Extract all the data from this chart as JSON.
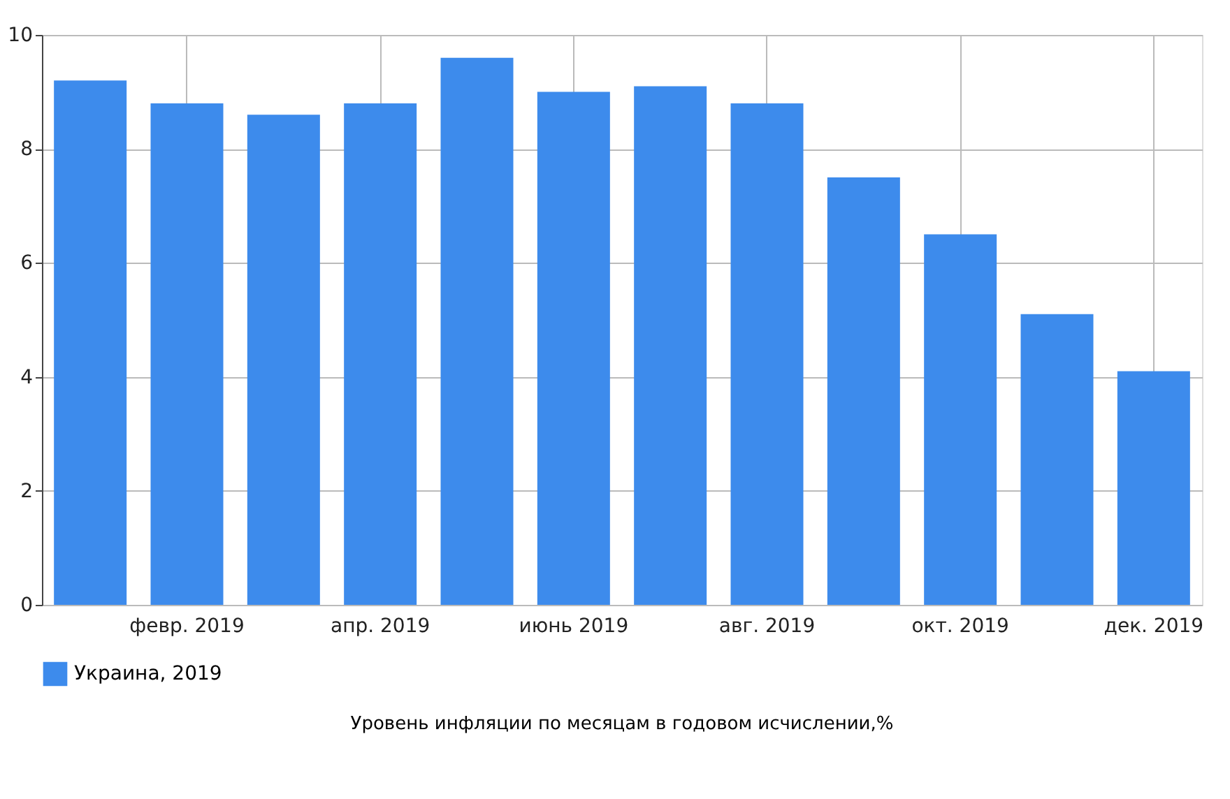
{
  "chart_data": {
    "type": "bar",
    "title": "Уровень инфляции по месяцам в годовом исчислении,%",
    "categories": [
      null,
      "февр. 2019",
      null,
      "апр. 2019",
      null,
      "июнь 2019",
      null,
      "авг. 2019",
      null,
      "окт. 2019",
      null,
      "дек. 2019"
    ],
    "series": [
      {
        "name": "Украина, 2019",
        "color": "#3d8bec",
        "values": [
          9.2,
          8.8,
          8.6,
          8.8,
          9.6,
          9.0,
          9.1,
          8.8,
          7.5,
          6.5,
          5.1,
          4.1
        ]
      }
    ],
    "ylim": [
      0,
      10
    ],
    "yticks": [
      0,
      2,
      4,
      6,
      8,
      10
    ],
    "grid": true,
    "legend": "bottom"
  }
}
